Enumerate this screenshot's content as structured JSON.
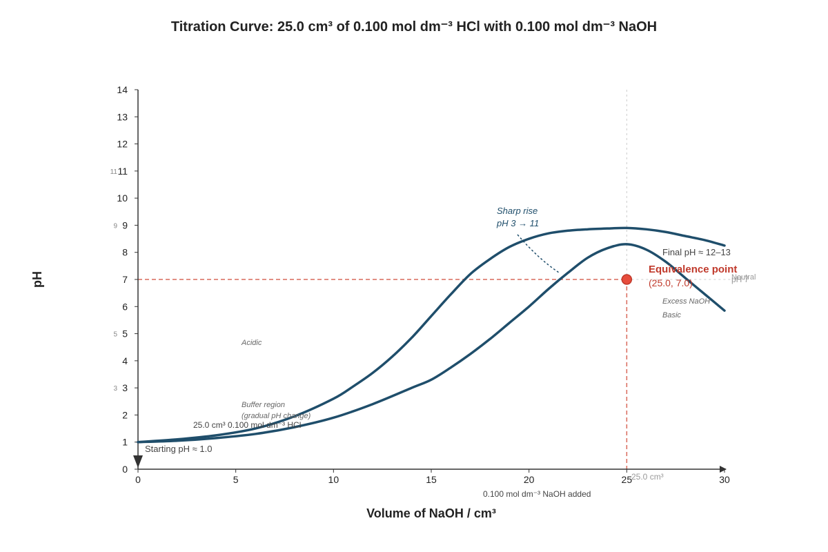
{
  "chart_data": {
    "type": "line",
    "title": "Titration Curve: 25.0 cm³ of 0.100 mol dm⁻³ HCl with 0.100 mol dm⁻³ NaOH",
    "xlabel": "Volume of NaOH / cm³",
    "ylabel": "pH",
    "xlim": [
      0,
      30
    ],
    "ylim": [
      0,
      14
    ],
    "x_ticks": [
      "0",
      "5",
      "10",
      "15",
      "20",
      "25",
      "30"
    ],
    "y_ticks": [
      "0",
      "1",
      "2",
      "3",
      "4",
      "5",
      "6",
      "7",
      "8",
      "9",
      "10",
      "11",
      "12",
      "13",
      "14"
    ],
    "y_faint_ticks": [
      {
        "value": 3,
        "label": "3"
      },
      {
        "value": 5,
        "label": "5"
      },
      {
        "value": 9,
        "label": "9"
      },
      {
        "value": 11,
        "label": "11"
      }
    ],
    "grid": false,
    "series": [
      {
        "x": [
          0,
          2,
          4,
          6,
          8,
          10,
          11,
          12,
          13,
          14,
          15,
          16,
          17,
          18,
          19,
          20,
          21,
          22,
          23,
          24,
          25,
          26,
          27,
          28,
          29,
          30
        ],
        "y": [
          1.0,
          1.1,
          1.25,
          1.5,
          1.95,
          2.6,
          3.05,
          3.55,
          4.15,
          4.85,
          5.65,
          6.45,
          7.2,
          7.75,
          8.2,
          8.5,
          8.7,
          8.8,
          8.85,
          8.88,
          8.9,
          8.85,
          8.75,
          8.6,
          8.45,
          8.25
        ],
        "color": "#1f4e6b"
      },
      {
        "x": [
          0,
          2,
          4,
          6,
          8,
          10,
          12,
          14,
          15,
          16,
          17,
          18,
          19,
          20,
          21,
          22,
          23,
          24,
          25,
          26,
          27,
          28,
          29,
          30
        ],
        "y": [
          1.0,
          1.05,
          1.15,
          1.3,
          1.55,
          1.9,
          2.4,
          3.0,
          3.3,
          3.75,
          4.25,
          4.8,
          5.4,
          6.0,
          6.65,
          7.25,
          7.8,
          8.15,
          8.3,
          8.1,
          7.65,
          7.05,
          6.45,
          5.85
        ],
        "color": "#1f4e6b"
      }
    ],
    "reference_lines": {
      "horizontal_y": 7.0,
      "vertical_x": 25,
      "color": "#d9695a"
    },
    "equivalence_point": {
      "x": 25.0,
      "y": 7.0,
      "title": "Equivalence point",
      "label": "(25.0, 7.0)",
      "color": "#e74c3c"
    },
    "annotations": {
      "starting_ph": "Starting pH ≈ 1.0",
      "hcl_volume": "25.0 cm³ 0.100 mol dm⁻³ HCl",
      "buffer_region": "Buffer region",
      "buffer_sub": "(gradual pH change)",
      "acidic": "Acidic",
      "sharp_rise": "Sharp rise",
      "sharp_rise_sub": "pH 3 → 11",
      "final_ph": "Final pH ≈ 12–13",
      "excess_naoh": "Excess NaOH",
      "basic": "Basic",
      "neutral": "Neutral",
      "ph7": "pH 7",
      "vol_25": "25.0 cm³",
      "naoh_added": "0.100 mol dm⁻³ NaOH added"
    }
  }
}
